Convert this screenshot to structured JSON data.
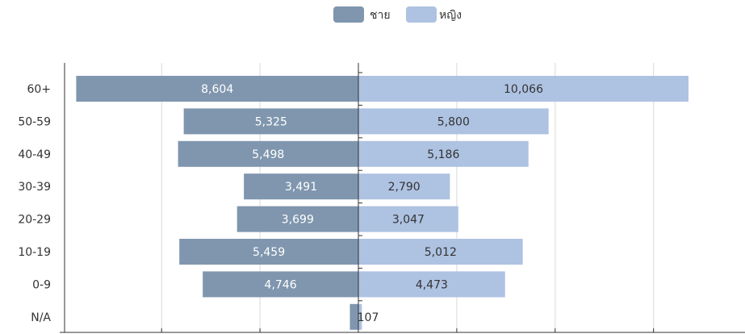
{
  "chart_data": {
    "type": "bar",
    "orientation": "horizontal",
    "layout": "population-pyramid",
    "categories": [
      "60+",
      "50-59",
      "40-49",
      "30-39",
      "20-29",
      "10-19",
      "0-9",
      "N/A"
    ],
    "series": [
      {
        "name": "ชาย",
        "values": [
          8604,
          5325,
          5498,
          3491,
          3699,
          5459,
          4746,
          259
        ],
        "labels": [
          "8,604",
          "5,325",
          "5,498",
          "3,491",
          "3,699",
          "5,459",
          "4,746",
          ""
        ],
        "color": "#7f96ae",
        "label_color": "#ffffff"
      },
      {
        "name": "หญิง",
        "values": [
          10066,
          5800,
          5186,
          2790,
          3047,
          5012,
          4473,
          107
        ],
        "labels": [
          "10,066",
          "5,800",
          "5,186",
          "2,790",
          "3,047",
          "5,012",
          "4,473",
          "107"
        ],
        "color": "#aec2e2",
        "label_color": "#333333"
      }
    ],
    "xlim": [
      -15000,
      15000
    ],
    "grid_step": 3000,
    "legend_position": "top-center",
    "grid": true
  }
}
